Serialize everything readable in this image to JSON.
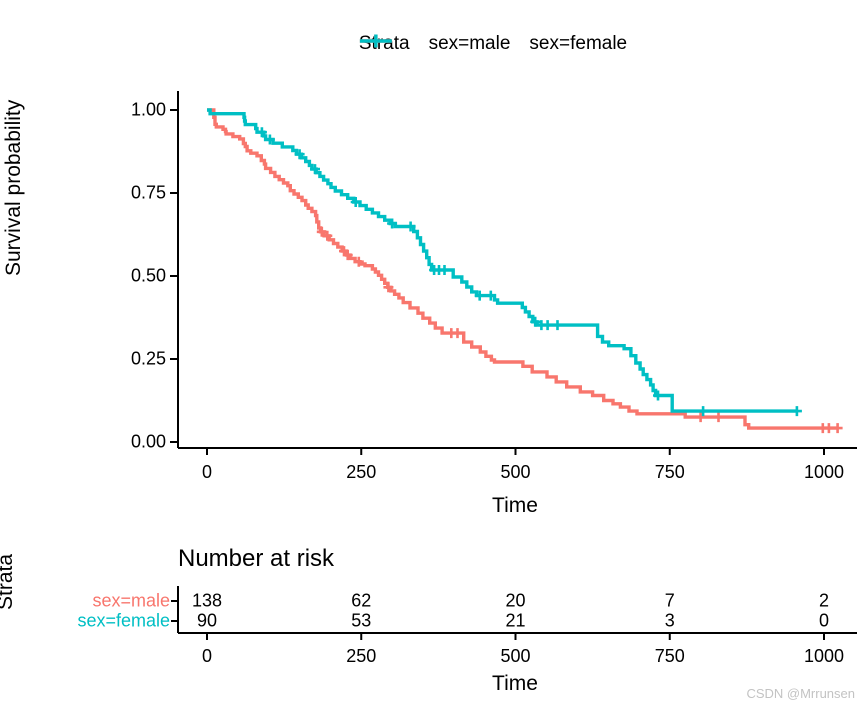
{
  "legend": {
    "title": "Strata",
    "items": [
      {
        "label": "sex=male",
        "color": "#F8766D"
      },
      {
        "label": "sex=female",
        "color": "#00BFC4"
      }
    ]
  },
  "watermark": "CSDN @Mrrunsen",
  "chart_data": {
    "type": "line",
    "subtype": "kaplan-meier-step-function",
    "title": "",
    "xlabel": "Time",
    "ylabel": "Survival probability",
    "xlim": [
      0,
      1022
    ],
    "ylim": [
      0,
      1
    ],
    "grid": false,
    "legend_position": "top",
    "x_ticks": [
      0,
      250,
      500,
      750,
      1000
    ],
    "y_ticks": [
      1.0,
      0.75,
      0.5,
      0.25,
      0.0
    ],
    "y_tick_labels": [
      "1.00",
      "0.75",
      "0.50",
      "0.25",
      "0.00"
    ],
    "series": [
      {
        "name": "sex=male",
        "color": "#F8766D",
        "end_time": 1022,
        "steps": [
          [
            0,
            1.0
          ],
          [
            11,
            0.978
          ],
          [
            13,
            0.957
          ],
          [
            15,
            0.949
          ],
          [
            26,
            0.942
          ],
          [
            30,
            0.935
          ],
          [
            31,
            0.928
          ],
          [
            42,
            0.92
          ],
          [
            53,
            0.913
          ],
          [
            59,
            0.899
          ],
          [
            62,
            0.89
          ],
          [
            65,
            0.877
          ],
          [
            71,
            0.87
          ],
          [
            81,
            0.862
          ],
          [
            88,
            0.848
          ],
          [
            93,
            0.837
          ],
          [
            95,
            0.824
          ],
          [
            103,
            0.812
          ],
          [
            110,
            0.8
          ],
          [
            117,
            0.79
          ],
          [
            124,
            0.78
          ],
          [
            131,
            0.772
          ],
          [
            135,
            0.757
          ],
          [
            141,
            0.747
          ],
          [
            148,
            0.737
          ],
          [
            154,
            0.727
          ],
          [
            160,
            0.714
          ],
          [
            164,
            0.704
          ],
          [
            170,
            0.694
          ],
          [
            176,
            0.682
          ],
          [
            178,
            0.663
          ],
          [
            181,
            0.645
          ],
          [
            184,
            0.633
          ],
          [
            190,
            0.621
          ],
          [
            198,
            0.609
          ],
          [
            205,
            0.598
          ],
          [
            212,
            0.587
          ],
          [
            219,
            0.575
          ],
          [
            226,
            0.563
          ],
          [
            232,
            0.553
          ],
          [
            240,
            0.543
          ],
          [
            248,
            0.536
          ],
          [
            256,
            0.531
          ],
          [
            268,
            0.521
          ],
          [
            273,
            0.512
          ],
          [
            278,
            0.502
          ],
          [
            283,
            0.49
          ],
          [
            288,
            0.478
          ],
          [
            293,
            0.466
          ],
          [
            298,
            0.455
          ],
          [
            304,
            0.445
          ],
          [
            311,
            0.434
          ],
          [
            318,
            0.42
          ],
          [
            329,
            0.404
          ],
          [
            342,
            0.388
          ],
          [
            350,
            0.373
          ],
          [
            361,
            0.358
          ],
          [
            370,
            0.343
          ],
          [
            381,
            0.328
          ],
          [
            416,
            0.301
          ],
          [
            429,
            0.286
          ],
          [
            443,
            0.271
          ],
          [
            452,
            0.258
          ],
          [
            461,
            0.247
          ],
          [
            466,
            0.241
          ],
          [
            512,
            0.228
          ],
          [
            527,
            0.211
          ],
          [
            551,
            0.196
          ],
          [
            566,
            0.181
          ],
          [
            583,
            0.166
          ],
          [
            605,
            0.151
          ],
          [
            625,
            0.14
          ],
          [
            643,
            0.125
          ],
          [
            658,
            0.115
          ],
          [
            670,
            0.105
          ],
          [
            684,
            0.093
          ],
          [
            697,
            0.085
          ],
          [
            775,
            0.075
          ],
          [
            872,
            0.052
          ],
          [
            878,
            0.042
          ]
        ],
        "censor_marks": [
          [
            186,
            0.633
          ],
          [
            195,
            0.621
          ],
          [
            222,
            0.575
          ],
          [
            228,
            0.563
          ],
          [
            246,
            0.543
          ],
          [
            294,
            0.466
          ],
          [
            396,
            0.328
          ],
          [
            406,
            0.328
          ],
          [
            800,
            0.075
          ],
          [
            829,
            0.075
          ],
          [
            998,
            0.042
          ],
          [
            1008,
            0.042
          ],
          [
            1022,
            0.042
          ]
        ]
      },
      {
        "name": "sex=female",
        "color": "#00BFC4",
        "end_time": 956,
        "steps": [
          [
            0,
            1.0
          ],
          [
            5,
            0.989
          ],
          [
            60,
            0.978
          ],
          [
            61,
            0.967
          ],
          [
            62,
            0.956
          ],
          [
            79,
            0.944
          ],
          [
            81,
            0.933
          ],
          [
            92,
            0.922
          ],
          [
            95,
            0.911
          ],
          [
            107,
            0.9
          ],
          [
            122,
            0.889
          ],
          [
            139,
            0.878
          ],
          [
            145,
            0.867
          ],
          [
            153,
            0.856
          ],
          [
            160,
            0.845
          ],
          [
            166,
            0.833
          ],
          [
            170,
            0.822
          ],
          [
            177,
            0.811
          ],
          [
            183,
            0.8
          ],
          [
            189,
            0.789
          ],
          [
            196,
            0.778
          ],
          [
            201,
            0.767
          ],
          [
            208,
            0.756
          ],
          [
            218,
            0.745
          ],
          [
            228,
            0.734
          ],
          [
            238,
            0.723
          ],
          [
            248,
            0.712
          ],
          [
            258,
            0.701
          ],
          [
            268,
            0.69
          ],
          [
            278,
            0.679
          ],
          [
            288,
            0.668
          ],
          [
            297,
            0.658
          ],
          [
            305,
            0.649
          ],
          [
            335,
            0.634
          ],
          [
            341,
            0.615
          ],
          [
            346,
            0.595
          ],
          [
            351,
            0.575
          ],
          [
            356,
            0.555
          ],
          [
            360,
            0.535
          ],
          [
            364,
            0.518
          ],
          [
            399,
            0.497
          ],
          [
            413,
            0.482
          ],
          [
            421,
            0.467
          ],
          [
            429,
            0.452
          ],
          [
            437,
            0.441
          ],
          [
            466,
            0.428
          ],
          [
            471,
            0.418
          ],
          [
            511,
            0.405
          ],
          [
            516,
            0.392
          ],
          [
            522,
            0.378
          ],
          [
            528,
            0.362
          ],
          [
            535,
            0.352
          ],
          [
            633,
            0.318
          ],
          [
            641,
            0.301
          ],
          [
            651,
            0.29
          ],
          [
            676,
            0.281
          ],
          [
            687,
            0.26
          ],
          [
            695,
            0.238
          ],
          [
            702,
            0.22
          ],
          [
            707,
            0.203
          ],
          [
            713,
            0.188
          ],
          [
            719,
            0.172
          ],
          [
            723,
            0.155
          ],
          [
            727,
            0.14
          ],
          [
            754,
            0.093
          ]
        ],
        "censor_marks": [
          [
            89,
            0.933
          ],
          [
            102,
            0.911
          ],
          [
            150,
            0.867
          ],
          [
            175,
            0.822
          ],
          [
            241,
            0.723
          ],
          [
            300,
            0.658
          ],
          [
            330,
            0.649
          ],
          [
            368,
            0.518
          ],
          [
            376,
            0.518
          ],
          [
            385,
            0.518
          ],
          [
            442,
            0.441
          ],
          [
            460,
            0.441
          ],
          [
            532,
            0.362
          ],
          [
            542,
            0.352
          ],
          [
            552,
            0.352
          ],
          [
            568,
            0.352
          ],
          [
            731,
            0.14
          ],
          [
            804,
            0.093
          ],
          [
            956,
            0.093
          ]
        ]
      }
    ]
  },
  "risk_table": {
    "title": "Number at risk",
    "ylabel": "Strata",
    "xlabel": "Time",
    "times": [
      0,
      250,
      500,
      750,
      1000
    ],
    "rows": [
      {
        "label": "sex=male",
        "color": "#F8766D",
        "values": [
          "138",
          "62",
          "20",
          "7",
          "2"
        ]
      },
      {
        "label": "sex=female",
        "color": "#00BFC4",
        "values": [
          "90",
          "53",
          "21",
          "3",
          "0"
        ]
      }
    ]
  }
}
